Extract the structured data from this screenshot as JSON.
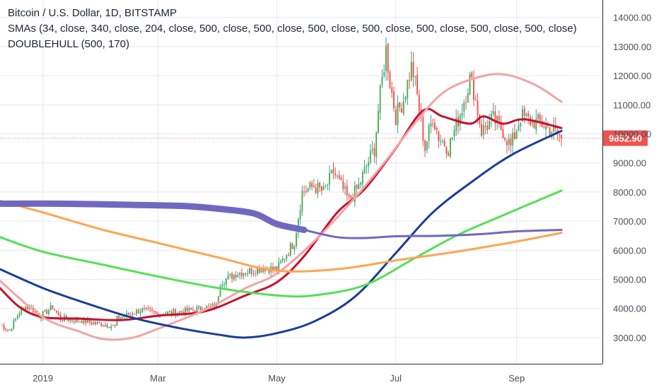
{
  "legend": {
    "title": "Bitcoin / U.S. Dollar, 1D, BITSTAMP",
    "smas": "SMAs (34, close, 340, close, 204, close, 500, close, 500, close, 500, close, 500, close, 500, close, 500, close, 500, close)",
    "hull": "DOUBLEHULL (500, 170)"
  },
  "last_price": {
    "label": "9852.90",
    "value": 9852.9,
    "color": "#ef5350"
  },
  "colors": {
    "grid": "#e6e9ef",
    "axis_text": "#4a4f5c",
    "up": "#26a69a",
    "up_fill": "#4caf50",
    "down": "#ef5350",
    "sma34": "#c8102e",
    "sma204": "#f4a3a3",
    "sma340": "#1a3d99",
    "sma500_green": "#55e055",
    "sma500_orange": "#ffa54f",
    "hull": "#7068c0"
  },
  "chart_data": {
    "type": "candlestick",
    "y_axis": {
      "ylim": [
        2100,
        14600
      ],
      "ticks": [
        3000,
        4000,
        5000,
        6000,
        7000,
        8000,
        9000,
        10000,
        11000,
        12000,
        13000,
        14000
      ],
      "tick_labels": [
        "3000.00",
        "4000.00",
        "5000.00",
        "6000.00",
        "7000.00",
        "8000.00",
        "9000.00",
        "10000.00",
        "11000.00",
        "12000.00",
        "13000.00",
        "14000.00"
      ]
    },
    "x_axis": {
      "start": "2018-12-10",
      "end": "2019-10-15",
      "ticks": [
        {
          "date": "2019-01-01",
          "label": "2019"
        },
        {
          "date": "2019-03-01",
          "label": "Mar"
        },
        {
          "date": "2019-05-01",
          "label": "May"
        },
        {
          "date": "2019-07-01",
          "label": "Jul"
        },
        {
          "date": "2019-09-01",
          "label": "Sep"
        }
      ],
      "grid_dates": [
        "2019-01-01",
        "2019-03-01",
        "2019-05-01",
        "2019-07-01",
        "2019-09-01",
        "2019-10-15"
      ]
    },
    "price_anchors": [
      [
        "2018-12-10",
        3450
      ],
      [
        "2018-12-15",
        3250
      ],
      [
        "2018-12-20",
        3900
      ],
      [
        "2018-12-24",
        4100
      ],
      [
        "2018-12-31",
        3750
      ],
      [
        "2019-01-06",
        4050
      ],
      [
        "2019-01-10",
        3650
      ],
      [
        "2019-01-20",
        3600
      ],
      [
        "2019-01-28",
        3480
      ],
      [
        "2019-02-07",
        3400
      ],
      [
        "2019-02-08",
        3650
      ],
      [
        "2019-02-20",
        3950
      ],
      [
        "2019-03-01",
        3820
      ],
      [
        "2019-03-15",
        3900
      ],
      [
        "2019-03-31",
        4100
      ],
      [
        "2019-04-02",
        4900
      ],
      [
        "2019-04-10",
        5200
      ],
      [
        "2019-04-25",
        5400
      ],
      [
        "2019-05-01",
        5350
      ],
      [
        "2019-05-10",
        6300
      ],
      [
        "2019-05-14",
        8000
      ],
      [
        "2019-05-20",
        8200
      ],
      [
        "2019-05-25",
        8000
      ],
      [
        "2019-05-30",
        8700
      ],
      [
        "2019-06-03",
        8200
      ],
      [
        "2019-06-07",
        7700
      ],
      [
        "2019-06-12",
        8200
      ],
      [
        "2019-06-16",
        8900
      ],
      [
        "2019-06-20",
        9500
      ],
      [
        "2019-06-22",
        10800
      ],
      [
        "2019-06-26",
        12900
      ],
      [
        "2019-06-28",
        11800
      ],
      [
        "2019-07-01",
        10600
      ],
      [
        "2019-07-05",
        11200
      ],
      [
        "2019-07-09",
        12300
      ],
      [
        "2019-07-10",
        12100
      ],
      [
        "2019-07-12",
        11300
      ],
      [
        "2019-07-16",
        9500
      ],
      [
        "2019-07-20",
        10600
      ],
      [
        "2019-07-23",
        9900
      ],
      [
        "2019-07-28",
        9500
      ],
      [
        "2019-08-01",
        10300
      ],
      [
        "2019-08-04",
        10900
      ],
      [
        "2019-08-08",
        11900
      ],
      [
        "2019-08-10",
        11500
      ],
      [
        "2019-08-14",
        10100
      ],
      [
        "2019-08-20",
        10500
      ],
      [
        "2019-08-25",
        10100
      ],
      [
        "2019-08-29",
        9550
      ],
      [
        "2019-09-03",
        10600
      ],
      [
        "2019-09-08",
        10450
      ],
      [
        "2019-09-14",
        10350
      ],
      [
        "2019-09-18",
        10150
      ],
      [
        "2019-09-22",
        10000
      ],
      [
        "2019-09-24",
        9852.9
      ]
    ],
    "series": [
      {
        "name": "SMA 34",
        "color_key": "sma34",
        "width": 3,
        "points": [
          [
            "2018-12-10",
            4700
          ],
          [
            "2018-12-20",
            4050
          ],
          [
            "2019-01-01",
            3700
          ],
          [
            "2019-01-20",
            3650
          ],
          [
            "2019-02-10",
            3600
          ],
          [
            "2019-03-01",
            3750
          ],
          [
            "2019-03-25",
            3900
          ],
          [
            "2019-04-15",
            4450
          ],
          [
            "2019-05-01",
            4900
          ],
          [
            "2019-05-15",
            5800
          ],
          [
            "2019-06-01",
            7300
          ],
          [
            "2019-06-15",
            8100
          ],
          [
            "2019-07-01",
            9500
          ],
          [
            "2019-07-15",
            10800
          ],
          [
            "2019-07-25",
            10600
          ],
          [
            "2019-08-08",
            10350
          ],
          [
            "2019-08-15",
            10600
          ],
          [
            "2019-08-25",
            10350
          ],
          [
            "2019-09-05",
            10500
          ],
          [
            "2019-09-24",
            10200
          ]
        ]
      },
      {
        "name": "SMA 204",
        "color_key": "sma204",
        "width": 3,
        "points": [
          [
            "2018-12-10",
            4950
          ],
          [
            "2019-01-01",
            3700
          ],
          [
            "2019-01-20",
            3200
          ],
          [
            "2019-02-01",
            2950
          ],
          [
            "2019-02-15",
            2980
          ],
          [
            "2019-03-01",
            3300
          ],
          [
            "2019-03-25",
            3950
          ],
          [
            "2019-04-15",
            4700
          ],
          [
            "2019-05-01",
            5200
          ],
          [
            "2019-05-20",
            6300
          ],
          [
            "2019-06-10",
            7800
          ],
          [
            "2019-06-25",
            9000
          ],
          [
            "2019-07-10",
            10300
          ],
          [
            "2019-07-25",
            11400
          ],
          [
            "2019-08-10",
            11900
          ],
          [
            "2019-08-25",
            12050
          ],
          [
            "2019-09-10",
            11700
          ],
          [
            "2019-09-24",
            11100
          ]
        ]
      },
      {
        "name": "SMA 340",
        "color_key": "sma340",
        "width": 3,
        "points": [
          [
            "2018-12-10",
            5350
          ],
          [
            "2019-01-01",
            4700
          ],
          [
            "2019-01-20",
            4250
          ],
          [
            "2019-02-15",
            3700
          ],
          [
            "2019-03-10",
            3350
          ],
          [
            "2019-04-01",
            3100
          ],
          [
            "2019-04-15",
            3000
          ],
          [
            "2019-05-01",
            3150
          ],
          [
            "2019-05-20",
            3550
          ],
          [
            "2019-06-10",
            4400
          ],
          [
            "2019-07-01",
            5900
          ],
          [
            "2019-07-20",
            7300
          ],
          [
            "2019-08-10",
            8400
          ],
          [
            "2019-08-30",
            9300
          ],
          [
            "2019-09-24",
            10100
          ]
        ]
      },
      {
        "name": "SMA 500",
        "color_key": "sma500_green",
        "width": 3,
        "points": [
          [
            "2018-12-10",
            6450
          ],
          [
            "2019-01-01",
            5950
          ],
          [
            "2019-02-01",
            5500
          ],
          [
            "2019-03-01",
            5100
          ],
          [
            "2019-04-01",
            4700
          ],
          [
            "2019-05-01",
            4450
          ],
          [
            "2019-05-20",
            4450
          ],
          [
            "2019-06-15",
            4800
          ],
          [
            "2019-07-10",
            5700
          ],
          [
            "2019-08-01",
            6500
          ],
          [
            "2019-08-25",
            7200
          ],
          [
            "2019-09-24",
            8050
          ]
        ]
      },
      {
        "name": "SMA 500",
        "color_key": "sma500_orange",
        "width": 3,
        "points": [
          [
            "2018-12-10",
            7700
          ],
          [
            "2019-01-01",
            7300
          ],
          [
            "2019-02-01",
            6700
          ],
          [
            "2019-03-01",
            6250
          ],
          [
            "2019-04-01",
            5750
          ],
          [
            "2019-05-01",
            5300
          ],
          [
            "2019-06-01",
            5350
          ],
          [
            "2019-07-01",
            5650
          ],
          [
            "2019-08-01",
            5950
          ],
          [
            "2019-09-01",
            6300
          ],
          [
            "2019-09-24",
            6600
          ]
        ]
      },
      {
        "name": "DOUBLEHULL (500, 170)",
        "color_key": "hull",
        "width": 9,
        "points": [
          [
            "2018-12-10",
            7600
          ],
          [
            "2019-01-10",
            7600
          ],
          [
            "2019-02-15",
            7560
          ],
          [
            "2019-03-15",
            7520
          ],
          [
            "2019-04-05",
            7400
          ],
          [
            "2019-04-20",
            7250
          ],
          [
            "2019-05-01",
            6900
          ],
          [
            "2019-05-15",
            6700
          ]
        ]
      },
      {
        "name": "DOUBLEHULL (500, 170)",
        "color_key": "hull",
        "width": 3,
        "points": [
          [
            "2019-05-15",
            6700
          ],
          [
            "2019-06-01",
            6450
          ],
          [
            "2019-06-15",
            6420
          ],
          [
            "2019-07-01",
            6480
          ],
          [
            "2019-07-25",
            6500
          ],
          [
            "2019-08-15",
            6560
          ],
          [
            "2019-09-01",
            6650
          ],
          [
            "2019-09-24",
            6700
          ]
        ]
      }
    ]
  }
}
